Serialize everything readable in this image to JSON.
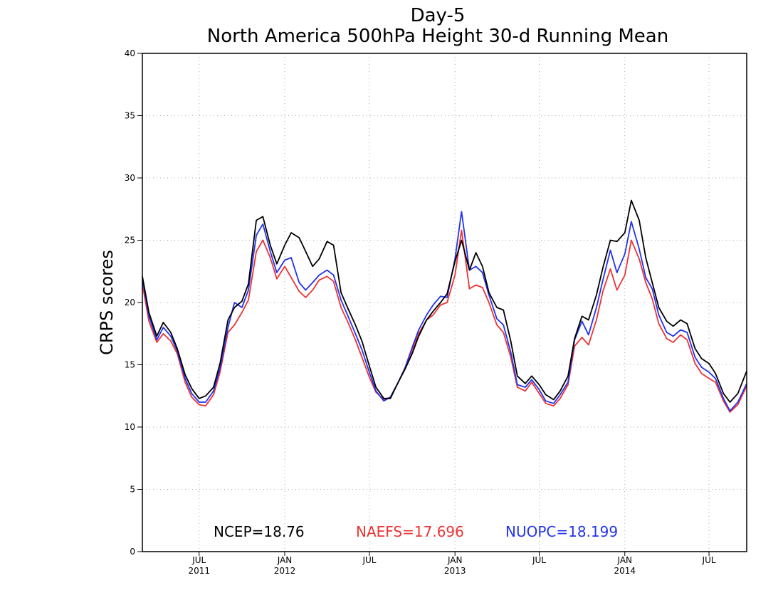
{
  "chart_data": {
    "type": "line",
    "title": "Day-5",
    "subtitle": "North America 500hPa Height 30-d Running Mean",
    "ylabel": "CRPS scores",
    "xlabel": "",
    "ylim": [
      0,
      40
    ],
    "yticks": [
      0,
      5,
      10,
      15,
      20,
      25,
      30,
      35,
      40
    ],
    "xlim": [
      "2011-03-01",
      "2014-09-20"
    ],
    "xticks": [
      {
        "date": "2011-07-01",
        "label": "JUL",
        "year": "2011"
      },
      {
        "date": "2012-01-01",
        "label": "JAN",
        "year": "2012"
      },
      {
        "date": "2012-07-01",
        "label": "JUL",
        "year": ""
      },
      {
        "date": "2013-01-01",
        "label": "JAN",
        "year": "2013"
      },
      {
        "date": "2013-07-01",
        "label": "JUL",
        "year": ""
      },
      {
        "date": "2014-01-01",
        "label": "JAN",
        "year": "2014"
      },
      {
        "date": "2014-07-01",
        "label": "JUL",
        "year": ""
      }
    ],
    "grid": true,
    "x": [
      "2011-03-01",
      "2011-03-15",
      "2011-04-01",
      "2011-04-15",
      "2011-05-01",
      "2011-05-15",
      "2011-06-01",
      "2011-06-15",
      "2011-07-01",
      "2011-07-15",
      "2011-08-01",
      "2011-08-15",
      "2011-09-01",
      "2011-09-15",
      "2011-10-01",
      "2011-10-15",
      "2011-11-01",
      "2011-11-15",
      "2011-12-01",
      "2011-12-15",
      "2012-01-01",
      "2012-01-15",
      "2012-02-01",
      "2012-02-15",
      "2012-03-01",
      "2012-03-15",
      "2012-04-01",
      "2012-04-15",
      "2012-05-01",
      "2012-05-15",
      "2012-06-01",
      "2012-06-15",
      "2012-07-01",
      "2012-07-15",
      "2012-08-01",
      "2012-08-15",
      "2012-09-01",
      "2012-09-15",
      "2012-10-01",
      "2012-10-15",
      "2012-11-01",
      "2012-11-15",
      "2012-12-01",
      "2012-12-15",
      "2013-01-01",
      "2013-01-15",
      "2013-02-01",
      "2013-02-15",
      "2013-03-01",
      "2013-03-15",
      "2013-04-01",
      "2013-04-15",
      "2013-05-01",
      "2013-05-15",
      "2013-06-01",
      "2013-06-15",
      "2013-07-01",
      "2013-07-15",
      "2013-08-01",
      "2013-08-15",
      "2013-09-01",
      "2013-09-15",
      "2013-10-01",
      "2013-10-15",
      "2013-11-01",
      "2013-11-15",
      "2013-12-01",
      "2013-12-15",
      "2014-01-01",
      "2014-01-15",
      "2014-02-01",
      "2014-02-15",
      "2014-03-01",
      "2014-03-15",
      "2014-04-01",
      "2014-04-15",
      "2014-05-01",
      "2014-05-15",
      "2014-06-01",
      "2014-06-15",
      "2014-07-01",
      "2014-07-15",
      "2014-08-01",
      "2014-08-15",
      "2014-09-01",
      "2014-09-20"
    ],
    "series": [
      {
        "name": "NCEP",
        "color": "#000000",
        "values": [
          22.1,
          19.2,
          17.3,
          18.4,
          17.6,
          16.3,
          14.2,
          13.1,
          12.3,
          12.5,
          13.2,
          15.1,
          18.6,
          19.6,
          20.1,
          21.5,
          26.6,
          26.9,
          24.6,
          23.1,
          24.6,
          25.6,
          25.2,
          24.1,
          22.9,
          23.5,
          24.9,
          24.6,
          20.8,
          19.6,
          18.2,
          16.9,
          14.9,
          13.2,
          12.3,
          12.3,
          13.6,
          14.6,
          15.9,
          17.3,
          18.6,
          19.3,
          20.0,
          20.7,
          23.3,
          25.0,
          22.6,
          24.0,
          22.9,
          20.8,
          19.6,
          19.4,
          16.9,
          14.1,
          13.5,
          14.1,
          13.4,
          12.6,
          12.2,
          12.9,
          14.1,
          17.1,
          18.9,
          18.6,
          20.6,
          22.8,
          25.0,
          24.9,
          25.6,
          28.2,
          26.6,
          23.6,
          21.6,
          19.6,
          18.5,
          18.1,
          18.6,
          18.3,
          16.3,
          15.5,
          15.1,
          14.3,
          12.7,
          12.0,
          12.7,
          14.5
        ]
      },
      {
        "name": "NAEFS",
        "color": "#ee3333",
        "values": [
          21.5,
          18.5,
          16.8,
          17.5,
          16.9,
          15.9,
          13.6,
          12.4,
          11.8,
          11.7,
          12.6,
          14.4,
          17.6,
          18.2,
          19.2,
          20.2,
          24.1,
          25.0,
          23.6,
          21.9,
          22.9,
          22.0,
          20.9,
          20.4,
          21.0,
          21.8,
          22.1,
          21.7,
          19.6,
          18.5,
          17.0,
          15.6,
          14.0,
          12.8,
          12.2,
          12.4,
          13.6,
          14.7,
          16.2,
          17.5,
          18.6,
          19.0,
          19.8,
          20.0,
          22.2,
          25.8,
          21.1,
          21.4,
          21.2,
          20.0,
          18.2,
          17.6,
          15.6,
          13.2,
          12.9,
          13.6,
          12.7,
          11.9,
          11.7,
          12.3,
          13.4,
          16.5,
          17.2,
          16.6,
          18.6,
          20.9,
          22.7,
          21.0,
          22.2,
          25.0,
          23.5,
          21.6,
          20.3,
          18.3,
          17.1,
          16.8,
          17.4,
          17.0,
          15.1,
          14.3,
          13.9,
          13.6,
          12.1,
          11.2,
          11.8,
          13.3
        ]
      },
      {
        "name": "NUOPC",
        "color": "#2233ee",
        "values": [
          21.9,
          18.9,
          17.0,
          18.0,
          17.3,
          16.1,
          13.9,
          12.7,
          12.0,
          12.0,
          12.9,
          14.7,
          18.0,
          20.0,
          19.6,
          21.0,
          25.4,
          26.3,
          24.1,
          22.4,
          23.4,
          23.6,
          21.6,
          21.0,
          21.6,
          22.2,
          22.6,
          22.2,
          20.2,
          19.0,
          17.5,
          16.2,
          14.4,
          12.9,
          12.1,
          12.4,
          13.6,
          14.7,
          16.4,
          17.8,
          19.0,
          19.8,
          20.5,
          20.4,
          23.5,
          27.3,
          22.6,
          22.9,
          22.4,
          20.6,
          18.7,
          18.2,
          16.0,
          13.4,
          13.2,
          13.8,
          13.0,
          12.1,
          11.9,
          12.6,
          13.6,
          17.0,
          18.5,
          17.4,
          19.6,
          21.8,
          24.2,
          22.4,
          23.9,
          26.5,
          24.3,
          22.0,
          21.1,
          19.0,
          17.6,
          17.3,
          17.8,
          17.6,
          15.6,
          14.8,
          14.4,
          13.9,
          12.3,
          11.3,
          12.0,
          13.5
        ]
      }
    ],
    "legend": [
      {
        "text": "NCEP=18.76",
        "color": "#000000"
      },
      {
        "text": "NAEFS=17.696",
        "color": "#ee3333"
      },
      {
        "text": "NUOPC=18.199",
        "color": "#2233ee"
      }
    ],
    "legend_position": "bottom-inside"
  }
}
